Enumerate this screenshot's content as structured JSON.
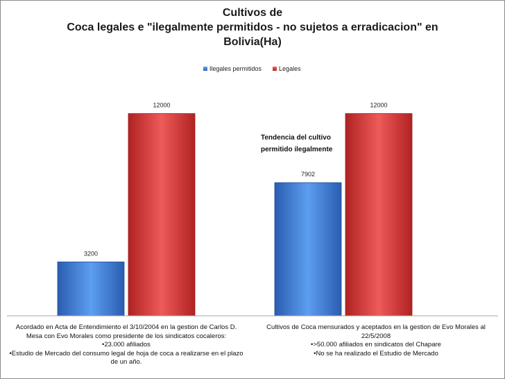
{
  "chart_data": {
    "type": "bar",
    "title_lines": [
      "Cultivos de",
      "Coca legales e \"ilegalmente permitidos - no sujetos a erradicacion\" en",
      "Bolivia(Ha)"
    ],
    "series": [
      {
        "name": "Ilegales permitidos",
        "values": [
          3200,
          7902
        ],
        "color": "#3f7fd9"
      },
      {
        "name": "Legales",
        "values": [
          12000,
          12000
        ],
        "color": "#d93a3a"
      }
    ],
    "data_labels": [
      [
        "3200",
        "7902"
      ],
      [
        "12000",
        "12000"
      ]
    ],
    "categories": [
      [
        "Acordado en Acta de Entendimiento  el 3/10/2004 en la gestion de Carlos D.",
        "Mesa con Evo Morales como  presidente de los sindicatos cocaleros:",
        "•23.000 afiliados",
        "•Estudio de Mercado del consumo legal de hoja de coca a realizarse en el plazo",
        "de un año."
      ],
      [
        "Cultivos de Coca mensurados  y aceptados en la gestion de Evo  Morales al",
        "22/5/2008",
        "•>50.000 afiliados en sindicatos del Chapare",
        "•No se ha realizado el Estudio de Mercado"
      ]
    ],
    "annotation": [
      "Tendencia del cultivo",
      "permitido ilegalmente"
    ],
    "ylim": [
      0,
      14000
    ],
    "xlabel": "",
    "ylabel": "",
    "grid": false,
    "legend_position": "top"
  }
}
